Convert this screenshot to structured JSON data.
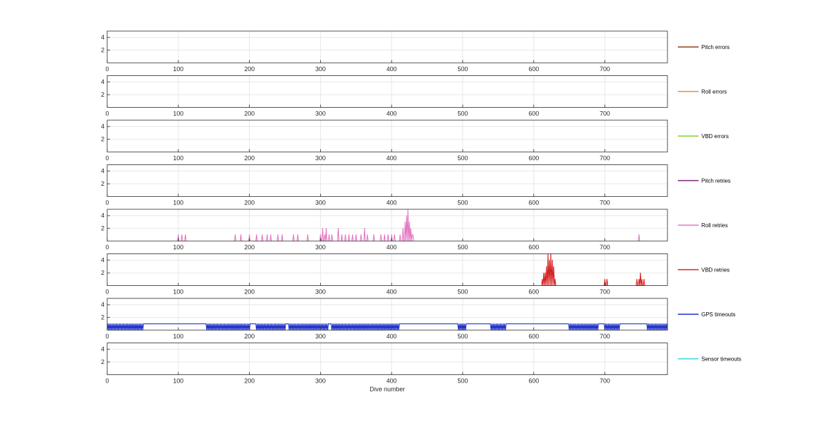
{
  "chart_data": {
    "type": "line",
    "xlabel": "Dive number",
    "xlim": [
      0,
      788
    ],
    "ylim": [
      0,
      5
    ],
    "x_ticks": [
      0,
      100,
      200,
      300,
      400,
      500,
      600,
      700
    ],
    "y_ticks": [
      2,
      4
    ],
    "grid": true,
    "legend_placement": "right of each panel",
    "panels": [
      {
        "name": "Pitch errors",
        "color": "#8B3A1A",
        "points": []
      },
      {
        "name": "Roll errors",
        "color": "#F08A24",
        "points": []
      },
      {
        "name": "VBD errors",
        "color": "#7ED321",
        "points": []
      },
      {
        "name": "Pitch retries",
        "color": "#7B1F7A",
        "points": []
      },
      {
        "name": "Roll retries",
        "color": "#E377C2",
        "points": [
          [
            100,
            1
          ],
          [
            105,
            1
          ],
          [
            110,
            1
          ],
          [
            180,
            1
          ],
          [
            188,
            1
          ],
          [
            200,
            1
          ],
          [
            210,
            1
          ],
          [
            218,
            1
          ],
          [
            225,
            1
          ],
          [
            230,
            1
          ],
          [
            240,
            1
          ],
          [
            246,
            1
          ],
          [
            262,
            1
          ],
          [
            268,
            1
          ],
          [
            282,
            1
          ],
          [
            300,
            1
          ],
          [
            303,
            2
          ],
          [
            306,
            1
          ],
          [
            308,
            2
          ],
          [
            312,
            1
          ],
          [
            316,
            1
          ],
          [
            325,
            2
          ],
          [
            330,
            1
          ],
          [
            335,
            1
          ],
          [
            340,
            1
          ],
          [
            345,
            1
          ],
          [
            350,
            1
          ],
          [
            357,
            1
          ],
          [
            362,
            2
          ],
          [
            366,
            1
          ],
          [
            375,
            1
          ],
          [
            385,
            1
          ],
          [
            390,
            1
          ],
          [
            395,
            1
          ],
          [
            400,
            1
          ],
          [
            404,
            1
          ],
          [
            412,
            1
          ],
          [
            416,
            2
          ],
          [
            419,
            3
          ],
          [
            421,
            4
          ],
          [
            423,
            5
          ],
          [
            425,
            3
          ],
          [
            427,
            2
          ],
          [
            429,
            1
          ],
          [
            430,
            1
          ],
          [
            748,
            1
          ]
        ]
      },
      {
        "name": "VBD retries",
        "color": "#D62020",
        "points": [
          [
            612,
            1
          ],
          [
            614,
            2
          ],
          [
            616,
            2
          ],
          [
            618,
            3
          ],
          [
            620,
            5
          ],
          [
            622,
            4
          ],
          [
            624,
            5
          ],
          [
            626,
            4
          ],
          [
            628,
            3
          ],
          [
            630,
            1
          ],
          [
            700,
            1
          ],
          [
            703,
            1
          ],
          [
            745,
            1
          ],
          [
            748,
            1
          ],
          [
            750,
            2
          ],
          [
            752,
            1
          ],
          [
            755,
            1
          ]
        ]
      },
      {
        "name": "GPS timeouts",
        "color": "#1A2CC8",
        "points": [],
        "background_value": 1,
        "zero_runs": [
          [
            0,
            50
          ],
          [
            140,
            200
          ],
          [
            210,
            250
          ],
          [
            255,
            290
          ],
          [
            290,
            310
          ],
          [
            315,
            410
          ],
          [
            493,
            505
          ],
          [
            540,
            560
          ],
          [
            650,
            690
          ],
          [
            700,
            720
          ],
          [
            760,
            788
          ]
        ]
      },
      {
        "name": "Sensor timeouts",
        "color": "#33D6E6",
        "points": []
      }
    ]
  }
}
